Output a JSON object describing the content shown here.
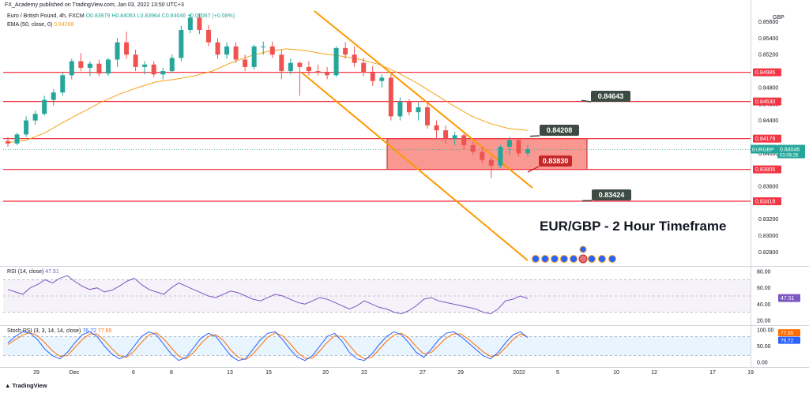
{
  "header": {
    "published": "FX_Academy published on TradingView.com, Jan 03, 2022 13:50 UTC+3",
    "symbol_line": "Euro / British Pound, 4h, FXCM",
    "ohlc": {
      "o": "O0.83979",
      "h": "H0.84063",
      "l": "L0.83964",
      "c": "C0.84046"
    },
    "change": "+0.00067 (+0.08%)",
    "ema_label": "EMA (50, close, 0)",
    "ema_value": "0.84268",
    "rsi_label": "RSI (14, close)",
    "rsi_value": "47.51",
    "stoch_label": "Stoch RSI (3, 3, 14, 14, close)",
    "stoch_k": "76.72",
    "stoch_d": "77.95"
  },
  "footer": {
    "brand": "TradingView"
  },
  "currency": "GBP",
  "chart_data": {
    "type": "candlestick",
    "title": "EUR/GBP - 2 Hour Timeframe",
    "symbol_tag": "EURGBP",
    "last_price": "0.84046",
    "countdown": "03:09:26",
    "price_ticks": [
      "0.85600",
      "0.85400",
      "0.85200",
      "0.85000",
      "0.84800",
      "0.84600",
      "0.84400",
      "0.84200",
      "0.84000",
      "0.83800",
      "0.83600",
      "0.83400",
      "0.83200",
      "0.83000",
      "0.82800"
    ],
    "ylim": [
      0.8265,
      0.8573
    ],
    "time_ticks": [
      "29",
      "Dec",
      "6",
      "8",
      "13",
      "15",
      "20",
      "22",
      "27",
      "29",
      "2022",
      "5",
      "10",
      "12",
      "17",
      "19"
    ],
    "horizontal_levels": [
      {
        "label": "0.84985",
        "value": 0.84985
      },
      {
        "label": "0.84630",
        "value": 0.8463
      },
      {
        "label": "0.84179",
        "value": 0.84179
      },
      {
        "label": "0.83805",
        "value": 0.83805
      },
      {
        "label": "0.83418",
        "value": 0.83418
      }
    ],
    "callouts": [
      {
        "label": "0.84643",
        "value": 0.84643
      },
      {
        "label": "0.84208",
        "value": 0.84208
      },
      {
        "label": "0.83830",
        "value": 0.8383
      },
      {
        "label": "0.83424",
        "value": 0.83424
      }
    ],
    "zone": {
      "top": 0.84179,
      "bottom": 0.83805
    },
    "ema_points": [
      0.8413,
      0.8416,
      0.8425,
      0.8438,
      0.845,
      0.8462,
      0.8472,
      0.848,
      0.8487,
      0.849,
      0.8494,
      0.85,
      0.851,
      0.8518,
      0.8524,
      0.8527,
      0.8525,
      0.8521,
      0.8518,
      0.8514,
      0.8508,
      0.8498,
      0.8486,
      0.8472,
      0.8458,
      0.8445,
      0.8436,
      0.843,
      0.8428
    ],
    "candles": [
      [
        0.8415,
        0.842,
        0.8408,
        0.8412
      ],
      [
        0.8412,
        0.8425,
        0.841,
        0.8423
      ],
      [
        0.8423,
        0.8445,
        0.842,
        0.844
      ],
      [
        0.844,
        0.8452,
        0.8435,
        0.8448
      ],
      [
        0.8448,
        0.847,
        0.8446,
        0.8465
      ],
      [
        0.8465,
        0.8478,
        0.8458,
        0.8474
      ],
      [
        0.8474,
        0.8498,
        0.847,
        0.8495
      ],
      [
        0.8495,
        0.8515,
        0.849,
        0.8512
      ],
      [
        0.8512,
        0.8522,
        0.85,
        0.8504
      ],
      [
        0.8504,
        0.8512,
        0.8494,
        0.8509
      ],
      [
        0.8509,
        0.8514,
        0.8494,
        0.8497
      ],
      [
        0.8497,
        0.8516,
        0.8494,
        0.8514
      ],
      [
        0.8514,
        0.854,
        0.8505,
        0.8535
      ],
      [
        0.8535,
        0.8548,
        0.8515,
        0.852
      ],
      [
        0.852,
        0.8526,
        0.85,
        0.8505
      ],
      [
        0.8505,
        0.8512,
        0.8496,
        0.8508
      ],
      [
        0.8508,
        0.8512,
        0.8493,
        0.8496
      ],
      [
        0.8496,
        0.8504,
        0.849,
        0.85
      ],
      [
        0.85,
        0.852,
        0.8498,
        0.8516
      ],
      [
        0.8516,
        0.8555,
        0.8512,
        0.855
      ],
      [
        0.855,
        0.857,
        0.8546,
        0.8565
      ],
      [
        0.8565,
        0.857,
        0.8545,
        0.855
      ],
      [
        0.855,
        0.8556,
        0.853,
        0.8535
      ],
      [
        0.8535,
        0.854,
        0.8515,
        0.852
      ],
      [
        0.852,
        0.8535,
        0.8515,
        0.853
      ],
      [
        0.853,
        0.8535,
        0.851,
        0.8514
      ],
      [
        0.8514,
        0.852,
        0.85,
        0.8505
      ],
      [
        0.8505,
        0.8532,
        0.8502,
        0.853
      ],
      [
        0.853,
        0.8536,
        0.852,
        0.853
      ],
      [
        0.853,
        0.8536,
        0.8516,
        0.852
      ],
      [
        0.852,
        0.8526,
        0.849,
        0.85
      ],
      [
        0.85,
        0.8515,
        0.8496,
        0.851
      ],
      [
        0.851,
        0.8512,
        0.847,
        0.8505
      ],
      [
        0.8505,
        0.8512,
        0.8495,
        0.85
      ],
      [
        0.85,
        0.8508,
        0.8495,
        0.8498
      ],
      [
        0.8498,
        0.8505,
        0.849,
        0.8495
      ],
      [
        0.8495,
        0.853,
        0.8493,
        0.8528
      ],
      [
        0.8528,
        0.8535,
        0.8515,
        0.852
      ],
      [
        0.852,
        0.853,
        0.8505,
        0.851
      ],
      [
        0.851,
        0.8516,
        0.8494,
        0.8498
      ],
      [
        0.8498,
        0.8506,
        0.8482,
        0.8488
      ],
      [
        0.8488,
        0.8496,
        0.848,
        0.8492
      ],
      [
        0.8492,
        0.8496,
        0.844,
        0.8445
      ],
      [
        0.8445,
        0.8468,
        0.844,
        0.8463
      ],
      [
        0.8463,
        0.8466,
        0.8446,
        0.845
      ],
      [
        0.845,
        0.8462,
        0.844,
        0.8456
      ],
      [
        0.8456,
        0.8462,
        0.843,
        0.8434
      ],
      [
        0.8434,
        0.844,
        0.8418,
        0.8428
      ],
      [
        0.8428,
        0.8434,
        0.8412,
        0.8418
      ],
      [
        0.8418,
        0.8426,
        0.841,
        0.8422
      ],
      [
        0.8422,
        0.8424,
        0.8405,
        0.841
      ],
      [
        0.841,
        0.8414,
        0.8398,
        0.8402
      ],
      [
        0.8402,
        0.8408,
        0.8388,
        0.8392
      ],
      [
        0.8392,
        0.8396,
        0.837,
        0.8385
      ],
      [
        0.8385,
        0.841,
        0.8382,
        0.8408
      ],
      [
        0.8408,
        0.842,
        0.8398,
        0.8416
      ],
      [
        0.8416,
        0.8418,
        0.8396,
        0.84
      ],
      [
        0.84,
        0.841,
        0.8396,
        0.8405
      ]
    ],
    "rsi_ticks": [
      "80.00",
      "60.00",
      "40.00",
      "20.00"
    ],
    "rsi_points": [
      58,
      55,
      52,
      60,
      64,
      70,
      66,
      72,
      75,
      68,
      62,
      58,
      60,
      55,
      57,
      62,
      68,
      72,
      64,
      58,
      55,
      52,
      60,
      66,
      62,
      58,
      54,
      50,
      48,
      52,
      56,
      54,
      50,
      46,
      44,
      48,
      52,
      50,
      46,
      42,
      40,
      44,
      48,
      46,
      42,
      38,
      34,
      38,
      44,
      40,
      36,
      34,
      30,
      28,
      32,
      38,
      46,
      48,
      44,
      42,
      40,
      38,
      36,
      34,
      30,
      28,
      34,
      44,
      46,
      50,
      47
    ],
    "rsi_bounds": [
      70,
      30
    ],
    "stoch_ticks": [
      "100.00",
      "50.00",
      "0.00"
    ],
    "stoch_k_points": [
      60,
      80,
      95,
      90,
      70,
      40,
      20,
      10,
      30,
      60,
      85,
      95,
      80,
      50,
      25,
      10,
      20,
      50,
      80,
      95,
      85,
      55,
      25,
      5,
      15,
      45,
      75,
      90,
      80,
      50,
      20,
      5,
      10,
      40,
      70,
      90,
      95,
      70,
      40,
      15,
      5,
      20,
      50,
      80,
      90,
      65,
      30,
      10,
      5,
      25,
      55,
      80,
      95,
      85,
      60,
      30,
      15,
      40,
      70,
      90,
      95,
      80,
      60,
      40,
      20,
      10,
      30,
      60,
      85,
      95,
      77
    ],
    "stoch_d_points": [
      55,
      70,
      85,
      92,
      82,
      60,
      35,
      18,
      20,
      45,
      70,
      88,
      88,
      68,
      42,
      20,
      15,
      35,
      62,
      85,
      92,
      72,
      45,
      18,
      10,
      30,
      58,
      80,
      86,
      68,
      38,
      15,
      8,
      25,
      52,
      78,
      92,
      82,
      58,
      30,
      12,
      12,
      35,
      62,
      82,
      80,
      52,
      25,
      10,
      15,
      40,
      65,
      85,
      90,
      75,
      48,
      25,
      30,
      52,
      75,
      88,
      88,
      72,
      52,
      32,
      18,
      22,
      45,
      70,
      88,
      78
    ],
    "stoch_bounds": [
      80,
      20
    ]
  }
}
